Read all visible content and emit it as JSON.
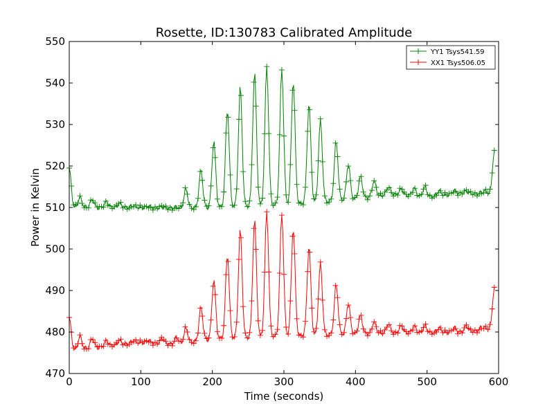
{
  "chart_data": {
    "type": "line",
    "title": "Rosette, ID:130783 Calibrated Amplitude",
    "xlabel": "Time (seconds)",
    "ylabel": "Power in Kelvin",
    "xlim": [
      0,
      600
    ],
    "ylim": [
      470,
      550
    ],
    "xticks": [
      "0",
      "100",
      "200",
      "300",
      "400",
      "500",
      "600"
    ],
    "yticks": [
      "470",
      "480",
      "490",
      "500",
      "510",
      "520",
      "530",
      "540",
      "550"
    ],
    "grid": false,
    "legend_position": "top-right",
    "marker": "plus",
    "series": [
      {
        "name": "YY1 Tsys541.59",
        "color": "#008000",
        "baseline": [
          [
            0,
            510
          ],
          [
            100,
            510
          ],
          [
            150,
            509.8
          ],
          [
            200,
            510
          ],
          [
            300,
            510.6
          ],
          [
            400,
            512
          ],
          [
            450,
            513.2
          ],
          [
            500,
            512.5
          ],
          [
            550,
            513.5
          ],
          [
            590,
            513
          ]
        ],
        "peaks": [
          [
            0,
            519.5
          ],
          [
            15,
            512.5
          ],
          [
            32,
            512
          ],
          [
            52,
            511.5
          ],
          [
            70,
            511
          ],
          [
            90,
            510.5
          ],
          [
            110,
            510.3
          ],
          [
            130,
            510.2
          ],
          [
            150,
            510
          ],
          [
            163,
            514.5
          ],
          [
            184,
            519
          ],
          [
            202,
            526
          ],
          [
            221,
            533.5
          ],
          [
            239,
            539
          ],
          [
            259,
            542.5
          ],
          [
            276,
            544
          ],
          [
            297,
            543.5
          ],
          [
            313,
            540.5
          ],
          [
            335,
            535
          ],
          [
            351,
            531
          ],
          [
            373,
            526
          ],
          [
            390,
            520.5
          ],
          [
            407,
            517.5
          ],
          [
            426,
            516.5
          ],
          [
            446,
            515
          ],
          [
            464,
            514.5
          ],
          [
            482,
            514.7
          ],
          [
            497,
            515
          ],
          [
            517,
            514
          ],
          [
            538,
            514
          ],
          [
            555,
            514
          ],
          [
            576,
            513.5
          ],
          [
            582,
            514
          ],
          [
            594,
            523.5
          ]
        ],
        "trend_points": [
          [
            0,
            519.5
          ],
          [
            100,
            510
          ],
          [
            200,
            510
          ],
          [
            276,
            544
          ],
          [
            400,
            512
          ],
          [
            500,
            512.5
          ],
          [
            594,
            523.5
          ]
        ]
      },
      {
        "name": "XX1 Tsys506.05",
        "color": "#ff0000",
        "baseline": [
          [
            0,
            475.5
          ],
          [
            100,
            477.5
          ],
          [
            150,
            477
          ],
          [
            200,
            478.3
          ],
          [
            300,
            479
          ],
          [
            400,
            479.5
          ],
          [
            450,
            479.8
          ],
          [
            500,
            479.8
          ],
          [
            550,
            480
          ],
          [
            590,
            480.5
          ]
        ],
        "peaks": [
          [
            0,
            483.5
          ],
          [
            15,
            479
          ],
          [
            32,
            478.5
          ],
          [
            52,
            478
          ],
          [
            70,
            478
          ],
          [
            90,
            478
          ],
          [
            110,
            478
          ],
          [
            130,
            478.5
          ],
          [
            150,
            478.7
          ],
          [
            163,
            481
          ],
          [
            184,
            486
          ],
          [
            202,
            492.5
          ],
          [
            221,
            498.5
          ],
          [
            239,
            504.5
          ],
          [
            259,
            507
          ],
          [
            276,
            509
          ],
          [
            297,
            508.5
          ],
          [
            313,
            505
          ],
          [
            335,
            500.5
          ],
          [
            351,
            496.5
          ],
          [
            373,
            491.5
          ],
          [
            390,
            487
          ],
          [
            407,
            484
          ],
          [
            426,
            482.5
          ],
          [
            446,
            482
          ],
          [
            464,
            481.5
          ],
          [
            482,
            481.5
          ],
          [
            497,
            481.5
          ],
          [
            517,
            481
          ],
          [
            538,
            481
          ],
          [
            555,
            481.5
          ],
          [
            576,
            481
          ],
          [
            582,
            481
          ],
          [
            594,
            490.5
          ]
        ],
        "trend_points": [
          [
            0,
            483.5
          ],
          [
            100,
            477.5
          ],
          [
            200,
            478.3
          ],
          [
            276,
            509
          ],
          [
            400,
            479.5
          ],
          [
            500,
            479.8
          ],
          [
            594,
            490.5
          ]
        ]
      }
    ]
  }
}
